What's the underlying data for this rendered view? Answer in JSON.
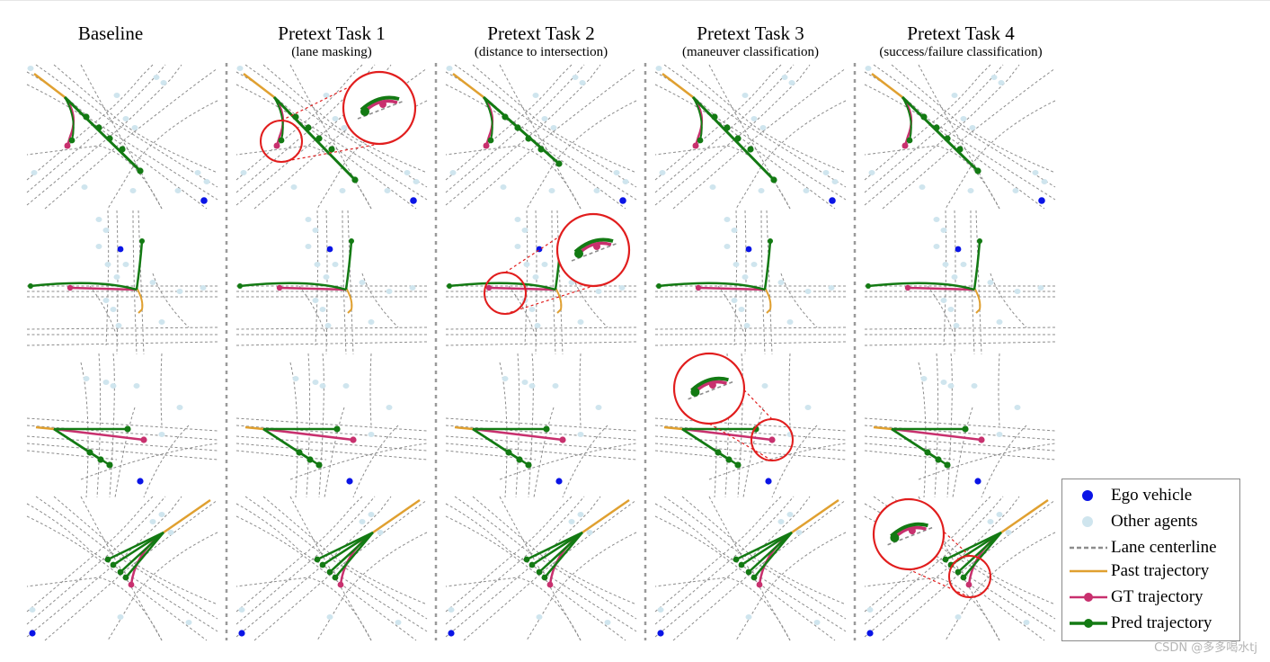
{
  "columns": [
    {
      "title": "Baseline",
      "subtitle": ""
    },
    {
      "title": "Pretext Task 1",
      "subtitle": "(lane masking)"
    },
    {
      "title": "Pretext Task 2",
      "subtitle": "(distance to intersection)"
    },
    {
      "title": "Pretext Task 3",
      "subtitle": "(maneuver classification)"
    },
    {
      "title": "Pretext Task 4",
      "subtitle": "(success/failure classification)"
    }
  ],
  "legend": [
    {
      "label": "Ego vehicle",
      "icon": "ego-dot-icon"
    },
    {
      "label": "Other agents",
      "icon": "agent-dot-icon"
    },
    {
      "label": "Lane centerline",
      "icon": "dashed-line-icon"
    },
    {
      "label": "Past trajectory",
      "icon": "orange-line-icon"
    },
    {
      "label": "GT trajectory",
      "icon": "magenta-line-icon"
    },
    {
      "label": "Pred trajectory",
      "icon": "green-line-icon"
    }
  ],
  "colors": {
    "ego": "#0a14e6",
    "agent": "#cfe5ee",
    "lane": "#8c8c8c",
    "past": "#e0a030",
    "gt": "#c8306e",
    "pred": "#137a13",
    "zoom": "#e11d1d"
  },
  "watermark": "CSDN @多多喝水tj"
}
